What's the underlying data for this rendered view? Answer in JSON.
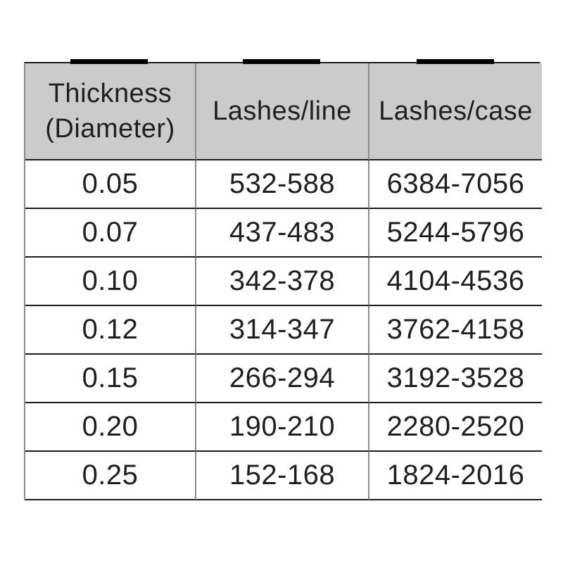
{
  "table": {
    "columns": [
      {
        "id": "thickness",
        "lines": [
          "Thickness",
          "(Diameter)"
        ]
      },
      {
        "id": "lashes_per_line",
        "lines": [
          "Lashes/line"
        ]
      },
      {
        "id": "lashes_per_case",
        "lines": [
          "Lashes/case"
        ]
      }
    ],
    "rows": [
      {
        "thickness": "0.05",
        "lashes_per_line": "532-588",
        "lashes_per_case": "6384-7056"
      },
      {
        "thickness": "0.07",
        "lashes_per_line": "437-483",
        "lashes_per_case": "5244-5796"
      },
      {
        "thickness": "0.10",
        "lashes_per_line": "342-378",
        "lashes_per_case": "4104-4536"
      },
      {
        "thickness": "0.12",
        "lashes_per_line": "314-347",
        "lashes_per_case": "3762-4158"
      },
      {
        "thickness": "0.15",
        "lashes_per_line": "266-294",
        "lashes_per_case": "3192-3528"
      },
      {
        "thickness": "0.20",
        "lashes_per_line": "190-210",
        "lashes_per_case": "2280-2520"
      },
      {
        "thickness": "0.25",
        "lashes_per_line": "152-168",
        "lashes_per_case": "1824-2016"
      }
    ],
    "style": {
      "header_background": "#cbcbcb",
      "horizontal_border_color": "#1c1c1c",
      "vertical_border_color": "#8c8c8c",
      "marker_bar_color": "#000000",
      "text_color": "#1f1f1f"
    }
  },
  "chart_data": {
    "type": "table",
    "title": "",
    "columns": [
      "Thickness (Diameter)",
      "Lashes/line",
      "Lashes/case"
    ],
    "rows": [
      [
        "0.05",
        "532-588",
        "6384-7056"
      ],
      [
        "0.07",
        "437-483",
        "5244-5796"
      ],
      [
        "0.10",
        "342-378",
        "4104-4536"
      ],
      [
        "0.12",
        "314-347",
        "3762-4158"
      ],
      [
        "0.15",
        "266-294",
        "3192-3528"
      ],
      [
        "0.20",
        "190-210",
        "2280-2520"
      ],
      [
        "0.25",
        "152-168",
        "1824-2016"
      ]
    ]
  }
}
